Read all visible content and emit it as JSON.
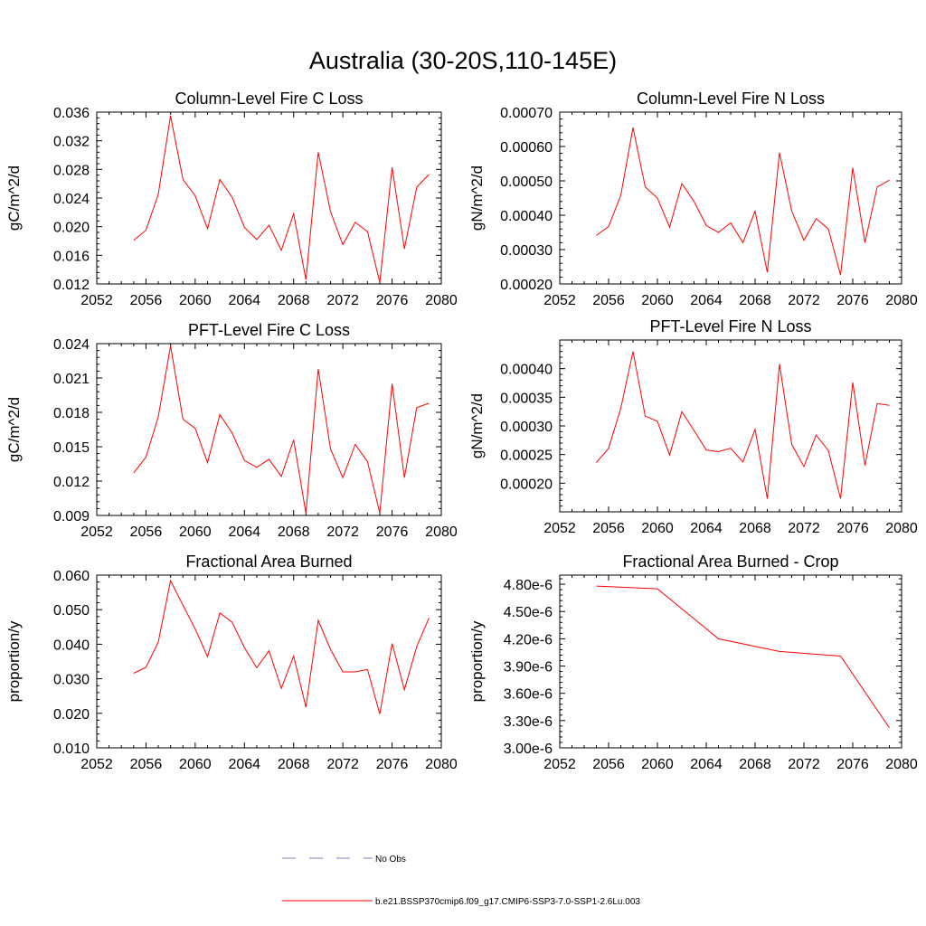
{
  "title": "Australia (30-20S,110-145E)",
  "panels": [
    {
      "title": "Column-Level Fire C Loss",
      "ylabel": "gC/m^2/d"
    },
    {
      "title": "Column-Level Fire N Loss",
      "ylabel": "gN/m^2/d"
    },
    {
      "title": "PFT-Level Fire C Loss",
      "ylabel": "gC/m^2/d"
    },
    {
      "title": "PFT-Level Fire N Loss",
      "ylabel": "gN/m^2/d"
    },
    {
      "title": "Fractional Area Burned",
      "ylabel": "proportion/y"
    },
    {
      "title": "Fractional Area Burned - Crop",
      "ylabel": "proportion/y"
    }
  ],
  "legend": {
    "obs_label": "No Obs",
    "model_label": "b.e21.BSSP370cmip6.f09_g17.CMIP6-SSP3-7.0-SSP1-2.6Lu.003",
    "obs_color": "#7f7fbf",
    "model_color": "#ff0000"
  },
  "chart_data": [
    {
      "type": "line",
      "title": "Column-Level Fire C Loss",
      "ylabel": "gC/m^2/d",
      "xlim": [
        2052,
        2080
      ],
      "ylim": [
        0.012,
        0.036
      ],
      "xticks": [
        "2052",
        "2056",
        "2060",
        "2064",
        "2068",
        "2072",
        "2076",
        "2080"
      ],
      "yticks": [
        "0.012",
        "0.016",
        "0.020",
        "0.024",
        "0.028",
        "0.032",
        "0.036"
      ],
      "series": [
        {
          "color": "#ff0000",
          "x": [
            2055,
            2056,
            2057,
            2058,
            2059,
            2060,
            2061,
            2062,
            2063,
            2064,
            2065,
            2066,
            2067,
            2068,
            2069,
            2070,
            2071,
            2072,
            2073,
            2074,
            2075,
            2076,
            2077,
            2078,
            2079
          ],
          "y": [
            0.0181,
            0.0195,
            0.0245,
            0.0355,
            0.0266,
            0.0243,
            0.0197,
            0.0266,
            0.0241,
            0.0199,
            0.0182,
            0.0202,
            0.0167,
            0.0218,
            0.0126,
            0.0304,
            0.0221,
            0.0175,
            0.0206,
            0.0193,
            0.0122,
            0.0283,
            0.0169,
            0.0255,
            0.0273
          ]
        }
      ]
    },
    {
      "type": "line",
      "title": "Column-Level Fire N Loss",
      "ylabel": "gN/m^2/d",
      "xlim": [
        2052,
        2080
      ],
      "ylim": [
        0.0002,
        0.0007
      ],
      "xticks": [
        "2052",
        "2056",
        "2060",
        "2064",
        "2068",
        "2072",
        "2076",
        "2080"
      ],
      "yticks": [
        "0.00020",
        "0.00030",
        "0.00040",
        "0.00050",
        "0.00060",
        "0.00070"
      ],
      "series": [
        {
          "color": "#ff0000",
          "x": [
            2055,
            2056,
            2057,
            2058,
            2059,
            2060,
            2061,
            2062,
            2063,
            2064,
            2065,
            2066,
            2067,
            2068,
            2069,
            2070,
            2071,
            2072,
            2073,
            2074,
            2075,
            2076,
            2077,
            2078,
            2079
          ],
          "y": [
            0.000341,
            0.000367,
            0.000458,
            0.000655,
            0.000482,
            0.00045,
            0.000365,
            0.000492,
            0.00044,
            0.00037,
            0.00035,
            0.000378,
            0.00032,
            0.000412,
            0.000234,
            0.000582,
            0.000412,
            0.000327,
            0.00039,
            0.00036,
            0.000226,
            0.000538,
            0.00032,
            0.000482,
            0.000502
          ]
        }
      ]
    },
    {
      "type": "line",
      "title": "PFT-Level Fire C Loss",
      "ylabel": "gC/m^2/d",
      "xlim": [
        2052,
        2080
      ],
      "ylim": [
        0.009,
        0.024
      ],
      "xticks": [
        "2052",
        "2056",
        "2060",
        "2064",
        "2068",
        "2072",
        "2076",
        "2080"
      ],
      "yticks": [
        "0.009",
        "0.012",
        "0.015",
        "0.018",
        "0.021",
        "0.024"
      ],
      "series": [
        {
          "color": "#ff0000",
          "x": [
            2055,
            2056,
            2057,
            2058,
            2059,
            2060,
            2061,
            2062,
            2063,
            2064,
            2065,
            2066,
            2067,
            2068,
            2069,
            2070,
            2071,
            2072,
            2073,
            2074,
            2075,
            2076,
            2077,
            2078,
            2079
          ],
          "y": [
            0.0127,
            0.0141,
            0.0176,
            0.0238,
            0.0174,
            0.0166,
            0.0136,
            0.0178,
            0.0162,
            0.0138,
            0.0132,
            0.0139,
            0.0124,
            0.0156,
            0.0092,
            0.0218,
            0.0148,
            0.0123,
            0.0152,
            0.0137,
            0.0092,
            0.0205,
            0.0123,
            0.0184,
            0.0188
          ]
        }
      ]
    },
    {
      "type": "line",
      "title": "PFT-Level Fire N Loss",
      "ylabel": "gN/m^2/d",
      "xlim": [
        2052,
        2080
      ],
      "ylim": [
        0.00015,
        0.00045
      ],
      "xticks": [
        "2052",
        "2056",
        "2060",
        "2064",
        "2068",
        "2072",
        "2076",
        "2080"
      ],
      "yticks": [
        "0.00020",
        "0.00025",
        "0.00030",
        "0.00035",
        "0.00040"
      ],
      "series": [
        {
          "color": "#ff0000",
          "x": [
            2055,
            2056,
            2057,
            2058,
            2059,
            2060,
            2061,
            2062,
            2063,
            2064,
            2065,
            2066,
            2067,
            2068,
            2069,
            2070,
            2071,
            2072,
            2073,
            2074,
            2075,
            2076,
            2077,
            2078,
            2079
          ],
          "y": [
            0.000236,
            0.000261,
            0.000331,
            0.00043,
            0.000317,
            0.000308,
            0.000249,
            0.000325,
            0.000292,
            0.000258,
            0.000255,
            0.000261,
            0.000237,
            0.000294,
            0.000173,
            0.000408,
            0.000268,
            0.000229,
            0.000284,
            0.000257,
            0.000173,
            0.000376,
            0.000231,
            0.000339,
            0.000336
          ]
        }
      ]
    },
    {
      "type": "line",
      "title": "Fractional Area Burned",
      "ylabel": "proportion/y",
      "xlim": [
        2052,
        2080
      ],
      "ylim": [
        0.01,
        0.06
      ],
      "xticks": [
        "2052",
        "2056",
        "2060",
        "2064",
        "2068",
        "2072",
        "2076",
        "2080"
      ],
      "yticks": [
        "0.010",
        "0.020",
        "0.030",
        "0.040",
        "0.050",
        "0.060"
      ],
      "series": [
        {
          "color": "#ff0000",
          "x": [
            2055,
            2056,
            2057,
            2058,
            2059,
            2060,
            2061,
            2062,
            2063,
            2064,
            2065,
            2066,
            2067,
            2068,
            2069,
            2070,
            2071,
            2072,
            2073,
            2074,
            2075,
            2076,
            2077,
            2078,
            2079
          ],
          "y": [
            0.0316,
            0.0333,
            0.0406,
            0.0584,
            0.0513,
            0.0444,
            0.0364,
            0.049,
            0.0464,
            0.039,
            0.0332,
            0.0381,
            0.0272,
            0.0366,
            0.0218,
            0.0469,
            0.0385,
            0.032,
            0.032,
            0.0327,
            0.0198,
            0.0402,
            0.0268,
            0.0393,
            0.0476
          ]
        }
      ]
    },
    {
      "type": "line",
      "title": "Fractional Area Burned - Crop",
      "ylabel": "proportion/y",
      "xlim": [
        2052,
        2080
      ],
      "ylim": [
        3e-06,
        4.9e-06
      ],
      "xticks": [
        "2052",
        "2056",
        "2060",
        "2064",
        "2068",
        "2072",
        "2076",
        "2080"
      ],
      "yticks": [
        "3.00e-6",
        "3.30e-6",
        "3.60e-6",
        "3.90e-6",
        "4.20e-6",
        "4.50e-6",
        "4.80e-6"
      ],
      "series": [
        {
          "color": "#ff0000",
          "x": [
            2055,
            2060,
            2065,
            2070,
            2075,
            2079
          ],
          "y": [
            4.78e-06,
            4.75e-06,
            4.2e-06,
            4.06e-06,
            4.01e-06,
            3.22e-06
          ]
        }
      ]
    }
  ]
}
